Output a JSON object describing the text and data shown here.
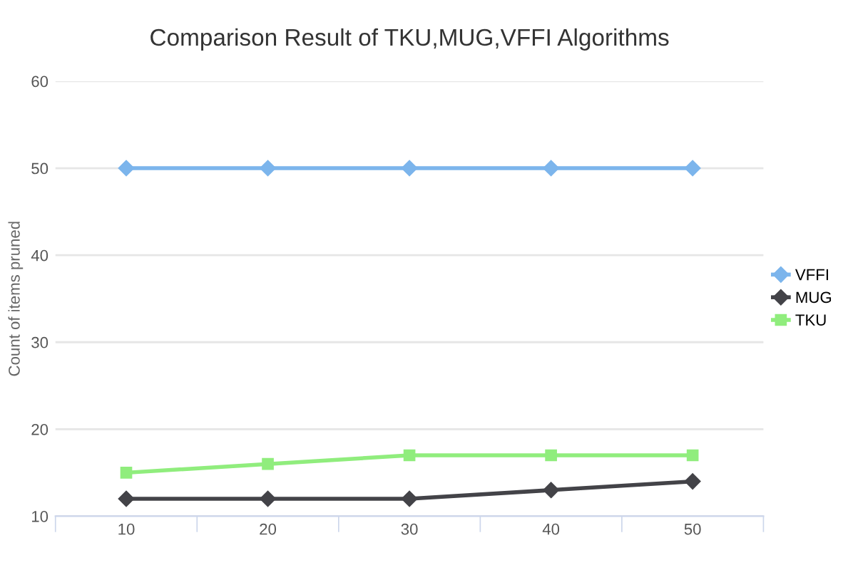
{
  "chart_data": {
    "type": "line",
    "title": "Comparison Result of TKU,MUG,VFFI Algorithms",
    "ylabel": "Count of items pruned",
    "categories": [
      "10",
      "20",
      "30",
      "40",
      "50"
    ],
    "series": [
      {
        "name": "VFFI",
        "color": "#7cb5ec",
        "marker": "diamond",
        "values": [
          50,
          50,
          50,
          50,
          50
        ]
      },
      {
        "name": "MUG",
        "color": "#434348",
        "marker": "diamond",
        "values": [
          12,
          12,
          12,
          13,
          14
        ]
      },
      {
        "name": "TKU",
        "color": "#90ed7d",
        "marker": "square",
        "values": [
          15,
          16,
          17,
          17,
          17
        ]
      }
    ],
    "ylim": [
      10,
      60
    ],
    "yticks": [
      10,
      20,
      30,
      40,
      50,
      60
    ],
    "grid": "y",
    "legend": "right"
  }
}
